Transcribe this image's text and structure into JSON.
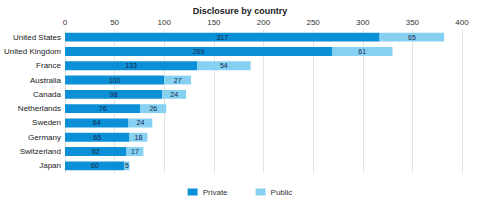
{
  "chart_data": {
    "type": "bar",
    "title": "Disclosure by country",
    "orientation": "horizontal",
    "stacked": true,
    "data_labels": true,
    "grid": true,
    "legend": "bottom",
    "categories": [
      "United States",
      "United Kingdom",
      "France",
      "Australia",
      "Canada",
      "Netherlands",
      "Sweden",
      "Germany",
      "Switzerland",
      "Japan"
    ],
    "series": [
      {
        "name": "Private",
        "color": "#0b8fd6",
        "values": [
          317,
          269,
          133,
          100,
          98,
          76,
          64,
          65,
          62,
          60
        ]
      },
      {
        "name": "Public",
        "color": "#86d0f2",
        "values": [
          65,
          61,
          54,
          27,
          24,
          26,
          24,
          18,
          17,
          5
        ]
      }
    ],
    "xlim": [
      0,
      400
    ],
    "xticks": [
      0,
      50,
      100,
      150,
      200,
      250,
      300,
      350,
      400
    ]
  }
}
